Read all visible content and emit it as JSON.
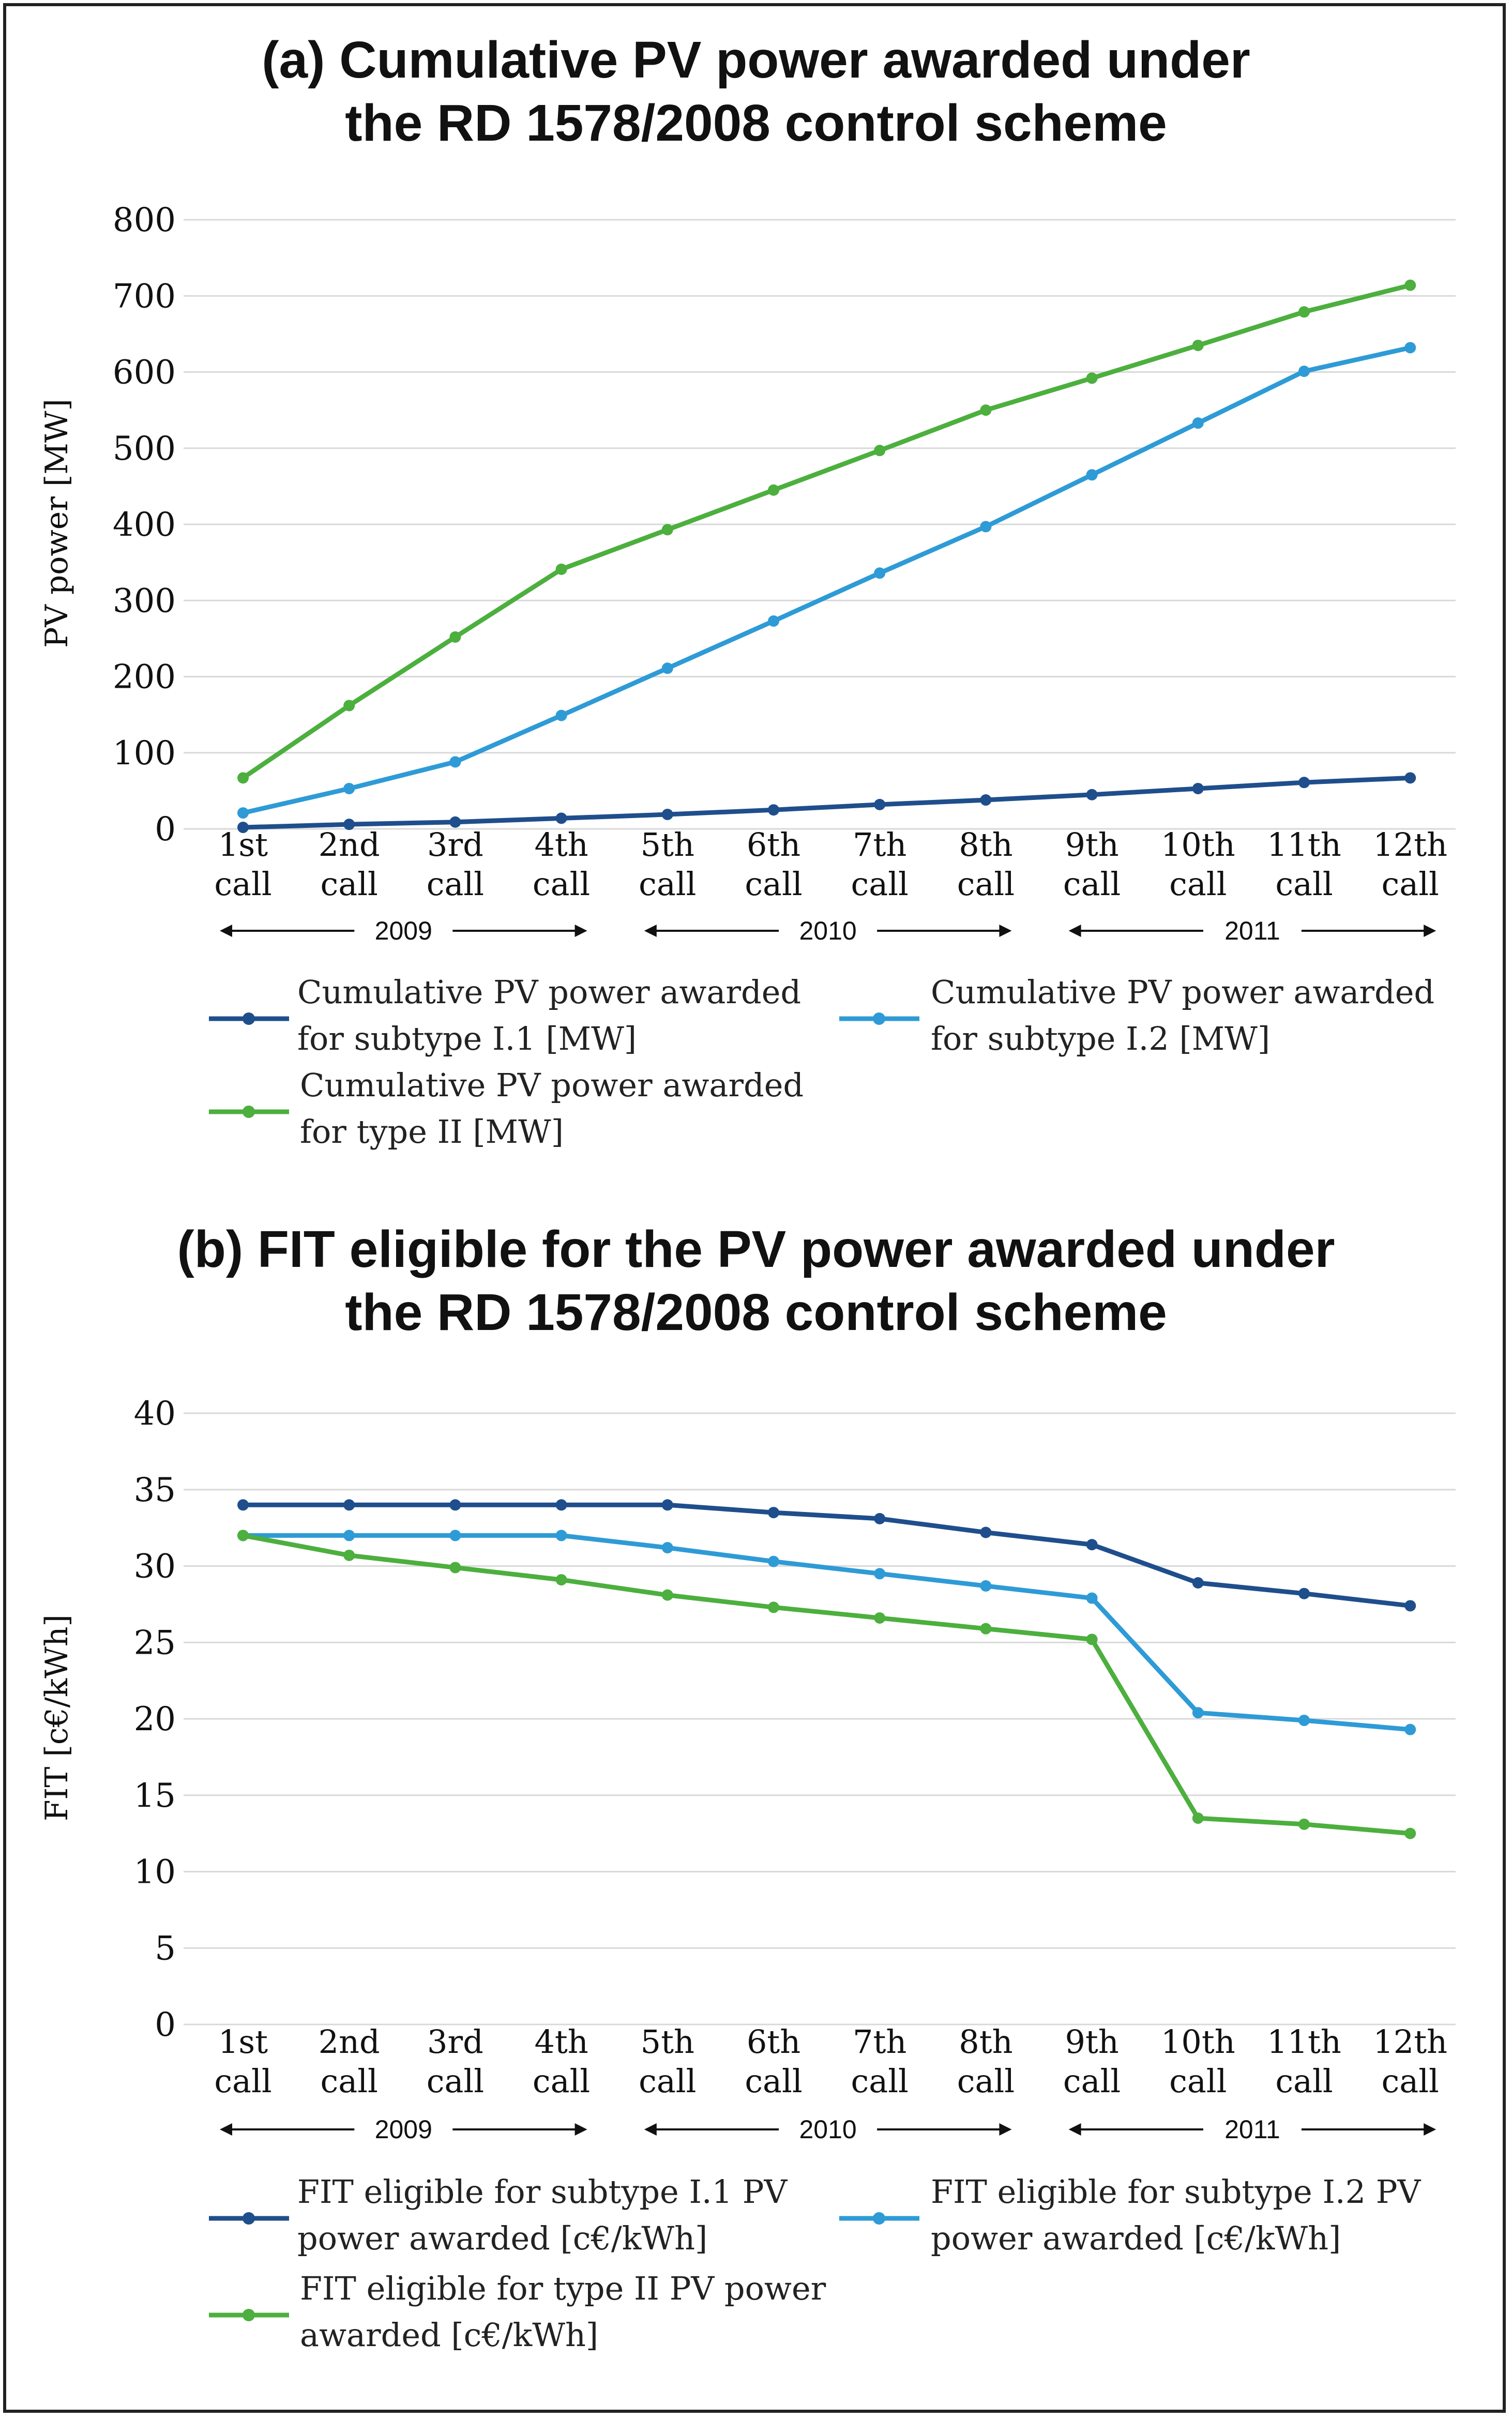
{
  "chart_data": [
    {
      "type": "line",
      "title_lines": [
        "(a) Cumulative PV power awarded under",
        "the RD 1578/2008 control scheme"
      ],
      "ylabel": "PV power [MW]",
      "ylim": [
        0,
        800
      ],
      "yticks": [
        "0",
        "100",
        "200",
        "300",
        "400",
        "500",
        "600",
        "700",
        "800"
      ],
      "categories": [
        [
          "1st",
          "call"
        ],
        [
          "2nd",
          "call"
        ],
        [
          "3rd",
          "call"
        ],
        [
          "4th",
          "call"
        ],
        [
          "5th",
          "call"
        ],
        [
          "6th",
          "call"
        ],
        [
          "7th",
          "call"
        ],
        [
          "8th",
          "call"
        ],
        [
          "9th",
          "call"
        ],
        [
          "10th",
          "call"
        ],
        [
          "11th",
          "call"
        ],
        [
          "12th",
          "call"
        ]
      ],
      "year_groups": [
        {
          "label": "2009",
          "from": 0,
          "to": 3
        },
        {
          "label": "2010",
          "from": 4,
          "to": 7
        },
        {
          "label": "2011",
          "from": 8,
          "to": 11
        }
      ],
      "series": [
        {
          "name_lines": [
            "Cumulative PV power awarded",
            "for subtype I.1 [MW]"
          ],
          "color": "#1f4e8c",
          "values": [
            2,
            6,
            9,
            14,
            19,
            25,
            32,
            38,
            45,
            53,
            61,
            67
          ]
        },
        {
          "name_lines": [
            "Cumulative PV power awarded",
            "for subtype I.2 [MW]"
          ],
          "color": "#2e9bd6",
          "values": [
            21,
            53,
            88,
            149,
            211,
            273,
            336,
            397,
            465,
            533,
            601,
            632
          ]
        },
        {
          "name_lines": [
            "Cumulative PV power awarded",
            "for type II [MW]"
          ],
          "color": "#4caf3e",
          "values": [
            67,
            162,
            252,
            341,
            393,
            445,
            497,
            550,
            592,
            635,
            679,
            714
          ]
        }
      ],
      "grid": true
    },
    {
      "type": "line",
      "title_lines": [
        "(b) FIT eligible for the PV power awarded under",
        "the RD 1578/2008 control scheme"
      ],
      "ylabel": "FIT [c€/kWh]",
      "ylim": [
        0,
        40
      ],
      "yticks": [
        "0",
        "5",
        "10",
        "15",
        "20",
        "25",
        "30",
        "35",
        "40"
      ],
      "categories": [
        [
          "1st",
          "call"
        ],
        [
          "2nd",
          "call"
        ],
        [
          "3rd",
          "call"
        ],
        [
          "4th",
          "call"
        ],
        [
          "5th",
          "call"
        ],
        [
          "6th",
          "call"
        ],
        [
          "7th",
          "call"
        ],
        [
          "8th",
          "call"
        ],
        [
          "9th",
          "call"
        ],
        [
          "10th",
          "call"
        ],
        [
          "11th",
          "call"
        ],
        [
          "12th",
          "call"
        ]
      ],
      "year_groups": [
        {
          "label": "2009",
          "from": 0,
          "to": 3
        },
        {
          "label": "2010",
          "from": 4,
          "to": 7
        },
        {
          "label": "2011",
          "from": 8,
          "to": 11
        }
      ],
      "series": [
        {
          "name_lines": [
            "FIT eligible for subtype I.1 PV",
            "power awarded [c€/kWh]"
          ],
          "color": "#1f4e8c",
          "values": [
            34.0,
            34.0,
            34.0,
            34.0,
            34.0,
            33.5,
            33.1,
            32.2,
            31.4,
            28.9,
            28.2,
            27.4
          ]
        },
        {
          "name_lines": [
            "FIT eligible for subtype I.2 PV",
            "power awarded [c€/kWh]"
          ],
          "color": "#2e9bd6",
          "values": [
            32.0,
            32.0,
            32.0,
            32.0,
            31.2,
            30.3,
            29.5,
            28.7,
            27.9,
            20.4,
            19.9,
            19.3
          ]
        },
        {
          "name_lines": [
            "FIT eligible for type II PV power",
            "awarded [c€/kWh]"
          ],
          "color": "#4caf3e",
          "values": [
            32.0,
            30.7,
            29.9,
            29.1,
            28.1,
            27.3,
            26.6,
            25.9,
            25.2,
            13.5,
            13.1,
            12.5
          ]
        }
      ],
      "grid": true
    }
  ]
}
